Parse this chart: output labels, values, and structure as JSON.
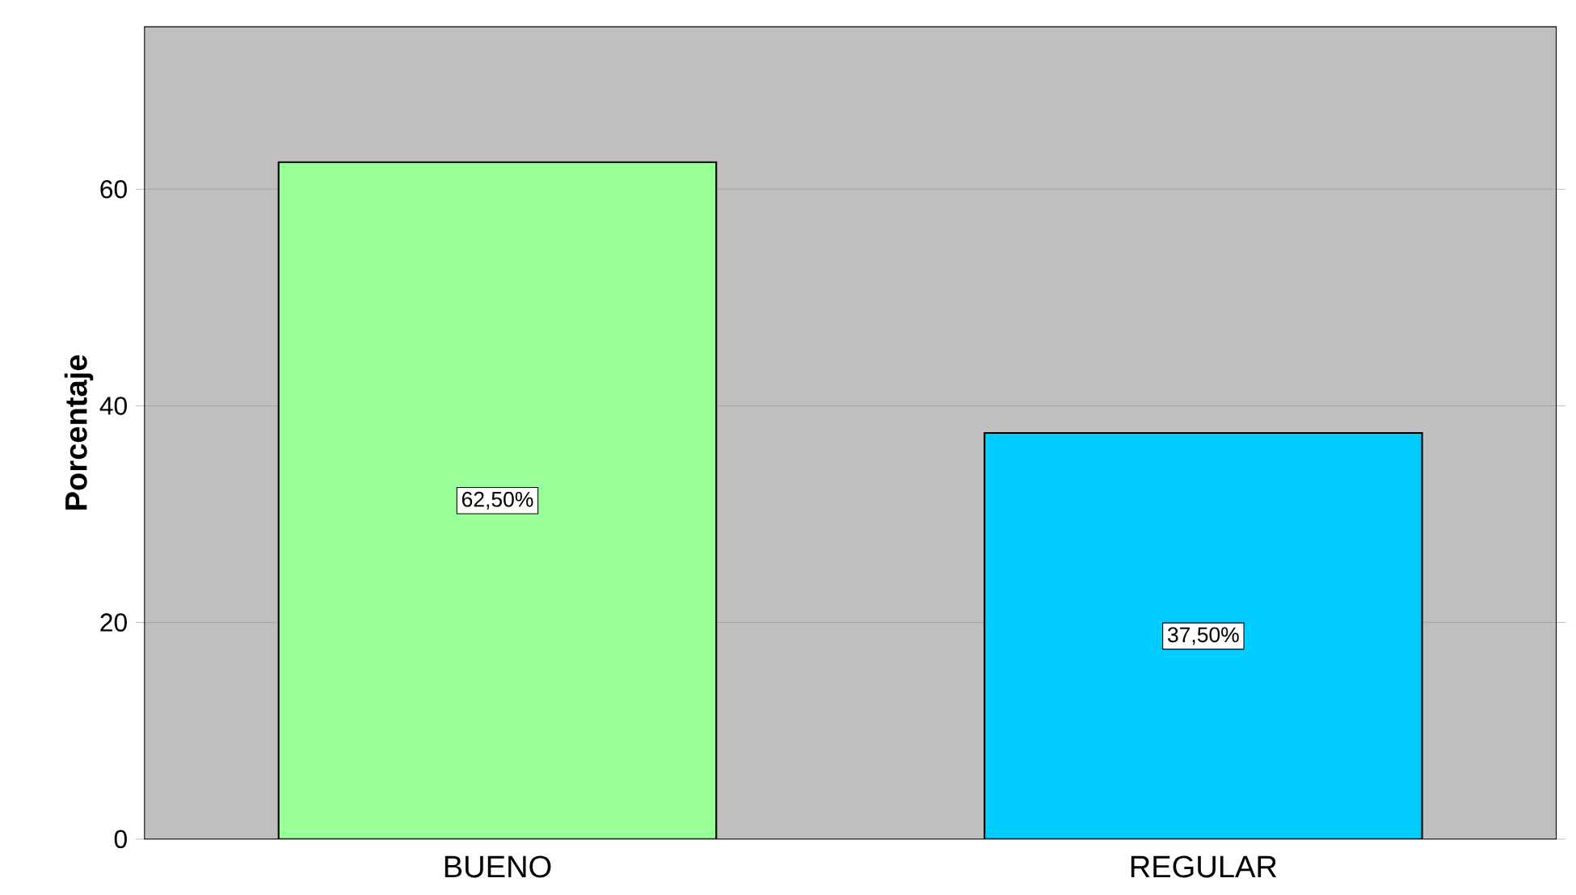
{
  "chart_data": {
    "type": "bar",
    "ylabel": "Porcentaje",
    "categories": [
      "BUENO",
      "REGULAR"
    ],
    "values": [
      62.5,
      37.5
    ],
    "colors": [
      "#99ff99",
      "#00ccff"
    ],
    "value_labels": [
      "62,50%",
      "37,50%"
    ],
    "ylim": [
      0,
      75
    ],
    "yticks": [
      0,
      20,
      40,
      60
    ],
    "grid": "y"
  }
}
